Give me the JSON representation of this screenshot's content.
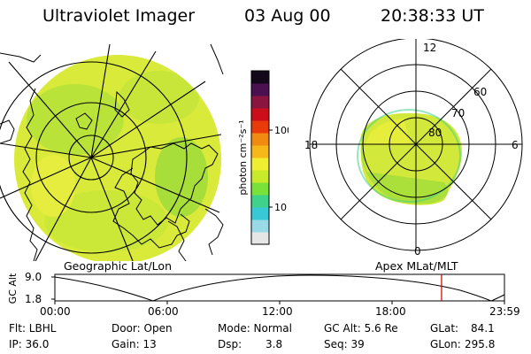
{
  "header": {
    "instrument": "Ultraviolet Imager",
    "date": "03 Aug 00",
    "time": "20:38:33 UT"
  },
  "colorbar": {
    "unit_label": "photon cm⁻²s⁻¹",
    "tick_100": "100",
    "tick_10": "10",
    "colors": [
      "#e6e6e6",
      "#9ad9e6",
      "#37c9d6",
      "#3fd28a",
      "#7ae03a",
      "#c8ea28",
      "#f0ee30",
      "#f6b818",
      "#f08a10",
      "#e83a0a",
      "#cc0e1a",
      "#8a1640",
      "#4a1050",
      "#12081a"
    ]
  },
  "geo_panel": {
    "label": "Geographic Lat/Lon",
    "image_fill": "#d9ea3a"
  },
  "apex_panel": {
    "label": "Apex MLat/MLT",
    "mlt_top": "12",
    "mlt_left": "18",
    "mlt_right": "6",
    "mlt_bottom": "0",
    "lat_60": "60",
    "lat_70": "70",
    "lat_80": "80"
  },
  "altitude_plot": {
    "axis_label": "GC Alt",
    "y_top": "9.0",
    "y_bottom": "1.8",
    "x_ticks": [
      "00:00",
      "06:00",
      "12:00",
      "18:00",
      "23:59"
    ],
    "marker_color": "#cc0000",
    "marker_time_fraction": 0.8601
  },
  "footer": {
    "flt": "Flt: LBHL",
    "ip": "IP: 36.0",
    "door": "Door: Open",
    "gain": "Gain: 13",
    "mode": "Mode: Normal",
    "dsp_label": "Dsp:",
    "dsp_value": "3.8",
    "gc_alt": "GC Alt: 5.6 Re",
    "seq": "Seq: 39",
    "glat_label": "GLat:",
    "glat_value": "84.1",
    "glon_label": "GLon:",
    "glon_value": "295.8"
  }
}
